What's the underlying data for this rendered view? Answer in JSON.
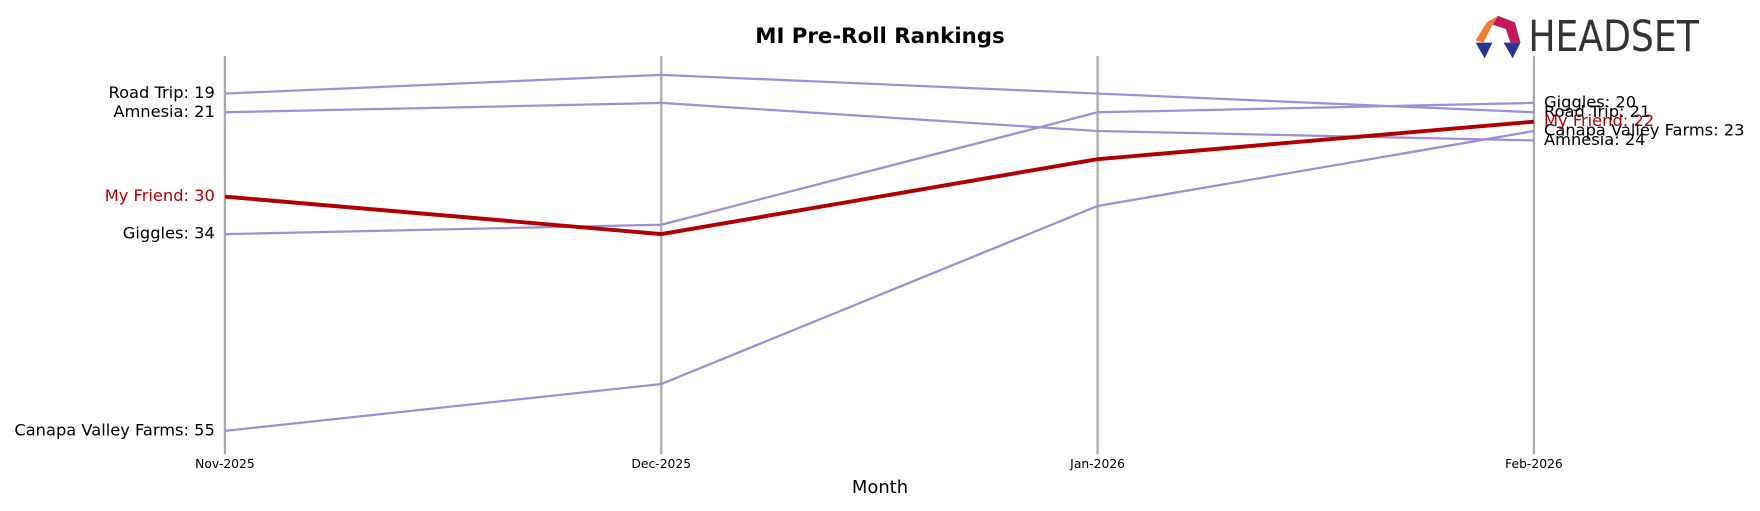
{
  "chart_data": {
    "type": "line",
    "title": "MI Pre-Roll Rankings",
    "xlabel": "Month",
    "logo": "HEADSET",
    "categories": [
      "Nov-2025",
      "Dec-2025",
      "Jan-2026",
      "Feb-2026"
    ],
    "ylim": [
      57.5,
      15
    ],
    "series": [
      {
        "name": "Road Trip",
        "color": "#9a8fd8",
        "values": [
          19,
          17,
          19,
          21
        ],
        "value_labels": [
          "Road Trip: 19",
          null,
          null,
          "Road Trip: 21"
        ]
      },
      {
        "name": "Amnesia",
        "color": "#9a8fd8",
        "values": [
          21,
          20,
          23,
          24
        ],
        "value_labels": [
          "Amnesia: 21",
          null,
          null,
          "Amnesia: 24"
        ]
      },
      {
        "name": "My Friend",
        "color": "#b00000",
        "values": [
          30,
          34,
          26,
          22
        ],
        "value_labels": [
          "My Friend: 30",
          null,
          null,
          "My Friend: 22"
        ]
      },
      {
        "name": "Giggles",
        "color": "#9a8fd8",
        "values": [
          34,
          33,
          21,
          20
        ],
        "value_labels": [
          "Giggles: 34",
          null,
          null,
          "Giggles: 20"
        ]
      },
      {
        "name": "Canapa Valley Farms",
        "color": "#9a8fd8",
        "values": [
          55,
          50,
          31,
          23
        ],
        "value_labels": [
          "Canapa Valley Farms: 55",
          null,
          null,
          "Canapa Valley Farms: 23"
        ]
      }
    ],
    "highlight": "My Friend"
  }
}
